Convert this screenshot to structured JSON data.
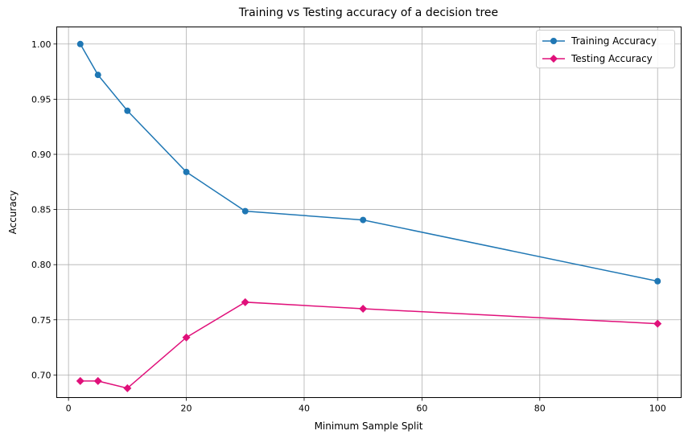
{
  "chart_data": {
    "type": "line",
    "title": "Training vs Testing accuracy of a decision tree",
    "xlabel": "Minimum Sample Split",
    "ylabel": "Accuracy",
    "xlim": [
      -2,
      104
    ],
    "ylim": [
      0.6795,
      1.0155
    ],
    "xticks": [
      0,
      20,
      40,
      60,
      80,
      100
    ],
    "yticks": [
      0.7,
      0.75,
      0.8,
      0.85,
      0.9,
      0.95,
      1.0
    ],
    "grid": true,
    "legend_position": "top-right",
    "x": [
      2,
      5,
      10,
      20,
      30,
      50,
      100
    ],
    "series": [
      {
        "name": "Training Accuracy",
        "color": "#1f77b4",
        "marker": "circle",
        "values": [
          1.0,
          0.972,
          0.9395,
          0.884,
          0.8485,
          0.8405,
          0.785
        ]
      },
      {
        "name": "Testing Accuracy",
        "color": "#e0107a",
        "marker": "diamond",
        "values": [
          0.6945,
          0.6945,
          0.688,
          0.734,
          0.766,
          0.76,
          0.7465
        ]
      }
    ]
  }
}
